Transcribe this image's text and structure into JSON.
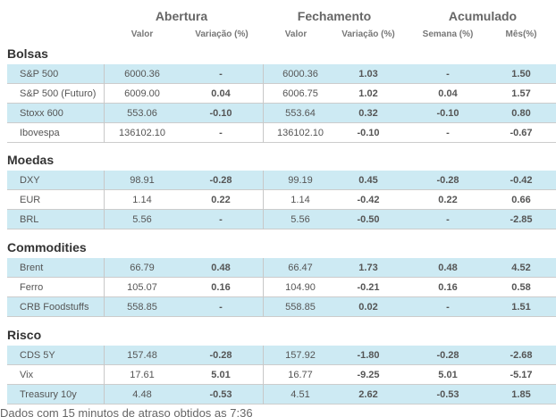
{
  "column_groups": [
    {
      "label": "Abertura",
      "subcols": [
        "Valor",
        "Variação (%)"
      ]
    },
    {
      "label": "Fechamento",
      "subcols": [
        "Valor",
        "Variação (%)"
      ]
    },
    {
      "label": "Acumulado",
      "subcols": [
        "Semana (%)",
        "Mês(%)"
      ]
    }
  ],
  "sections": [
    {
      "title": "Bolsas",
      "rows": [
        {
          "name": "S&P 500",
          "open_value": "6000.36",
          "open_var": "-",
          "close_value": "6000.36",
          "close_var": "1.03",
          "week": "-",
          "month": "1.50"
        },
        {
          "name": "S&P 500 (Futuro)",
          "open_value": "6009.00",
          "open_var": "0.04",
          "close_value": "6006.75",
          "close_var": "1.02",
          "week": "0.04",
          "month": "1.57"
        },
        {
          "name": "Stoxx 600",
          "open_value": "553.06",
          "open_var": "-0.10",
          "close_value": "553.64",
          "close_var": "0.32",
          "week": "-0.10",
          "month": "0.80"
        },
        {
          "name": "Ibovespa",
          "open_value": "136102.10",
          "open_var": "-",
          "close_value": "136102.10",
          "close_var": "-0.10",
          "week": "-",
          "month": "-0.67"
        }
      ]
    },
    {
      "title": "Moedas",
      "rows": [
        {
          "name": "DXY",
          "open_value": "98.91",
          "open_var": "-0.28",
          "close_value": "99.19",
          "close_var": "0.45",
          "week": "-0.28",
          "month": "-0.42"
        },
        {
          "name": "EUR",
          "open_value": "1.14",
          "open_var": "0.22",
          "close_value": "1.14",
          "close_var": "-0.42",
          "week": "0.22",
          "month": "0.66"
        },
        {
          "name": "BRL",
          "open_value": "5.56",
          "open_var": "-",
          "close_value": "5.56",
          "close_var": "-0.50",
          "week": "-",
          "month": "-2.85"
        }
      ]
    },
    {
      "title": "Commodities",
      "rows": [
        {
          "name": "Brent",
          "open_value": "66.79",
          "open_var": "0.48",
          "close_value": "66.47",
          "close_var": "1.73",
          "week": "0.48",
          "month": "4.52"
        },
        {
          "name": "Ferro",
          "open_value": "105.07",
          "open_var": "0.16",
          "close_value": "104.90",
          "close_var": "-0.21",
          "week": "0.16",
          "month": "0.58"
        },
        {
          "name": "CRB Foodstuffs",
          "open_value": "558.85",
          "open_var": "-",
          "close_value": "558.85",
          "close_var": "0.02",
          "week": "-",
          "month": "1.51"
        }
      ]
    },
    {
      "title": "Risco",
      "rows": [
        {
          "name": "CDS 5Y",
          "open_value": "157.48",
          "open_var": "-0.28",
          "close_value": "157.92",
          "close_var": "-1.80",
          "week": "-0.28",
          "month": "-2.68"
        },
        {
          "name": "Vix",
          "open_value": "17.61",
          "open_var": "5.01",
          "close_value": "16.77",
          "close_var": "-9.25",
          "week": "5.01",
          "month": "-5.17"
        },
        {
          "name": "Treasury 10y",
          "open_value": "4.48",
          "open_var": "-0.53",
          "close_value": "4.51",
          "close_var": "2.62",
          "week": "-0.53",
          "month": "1.85"
        }
      ]
    }
  ],
  "footer": "Dados com 15 minutos de atraso obtidos as 7:36",
  "colors": {
    "row_blue": "#cdeaf3",
    "positive": "#3a6fd1",
    "negative": "#a3244f"
  }
}
